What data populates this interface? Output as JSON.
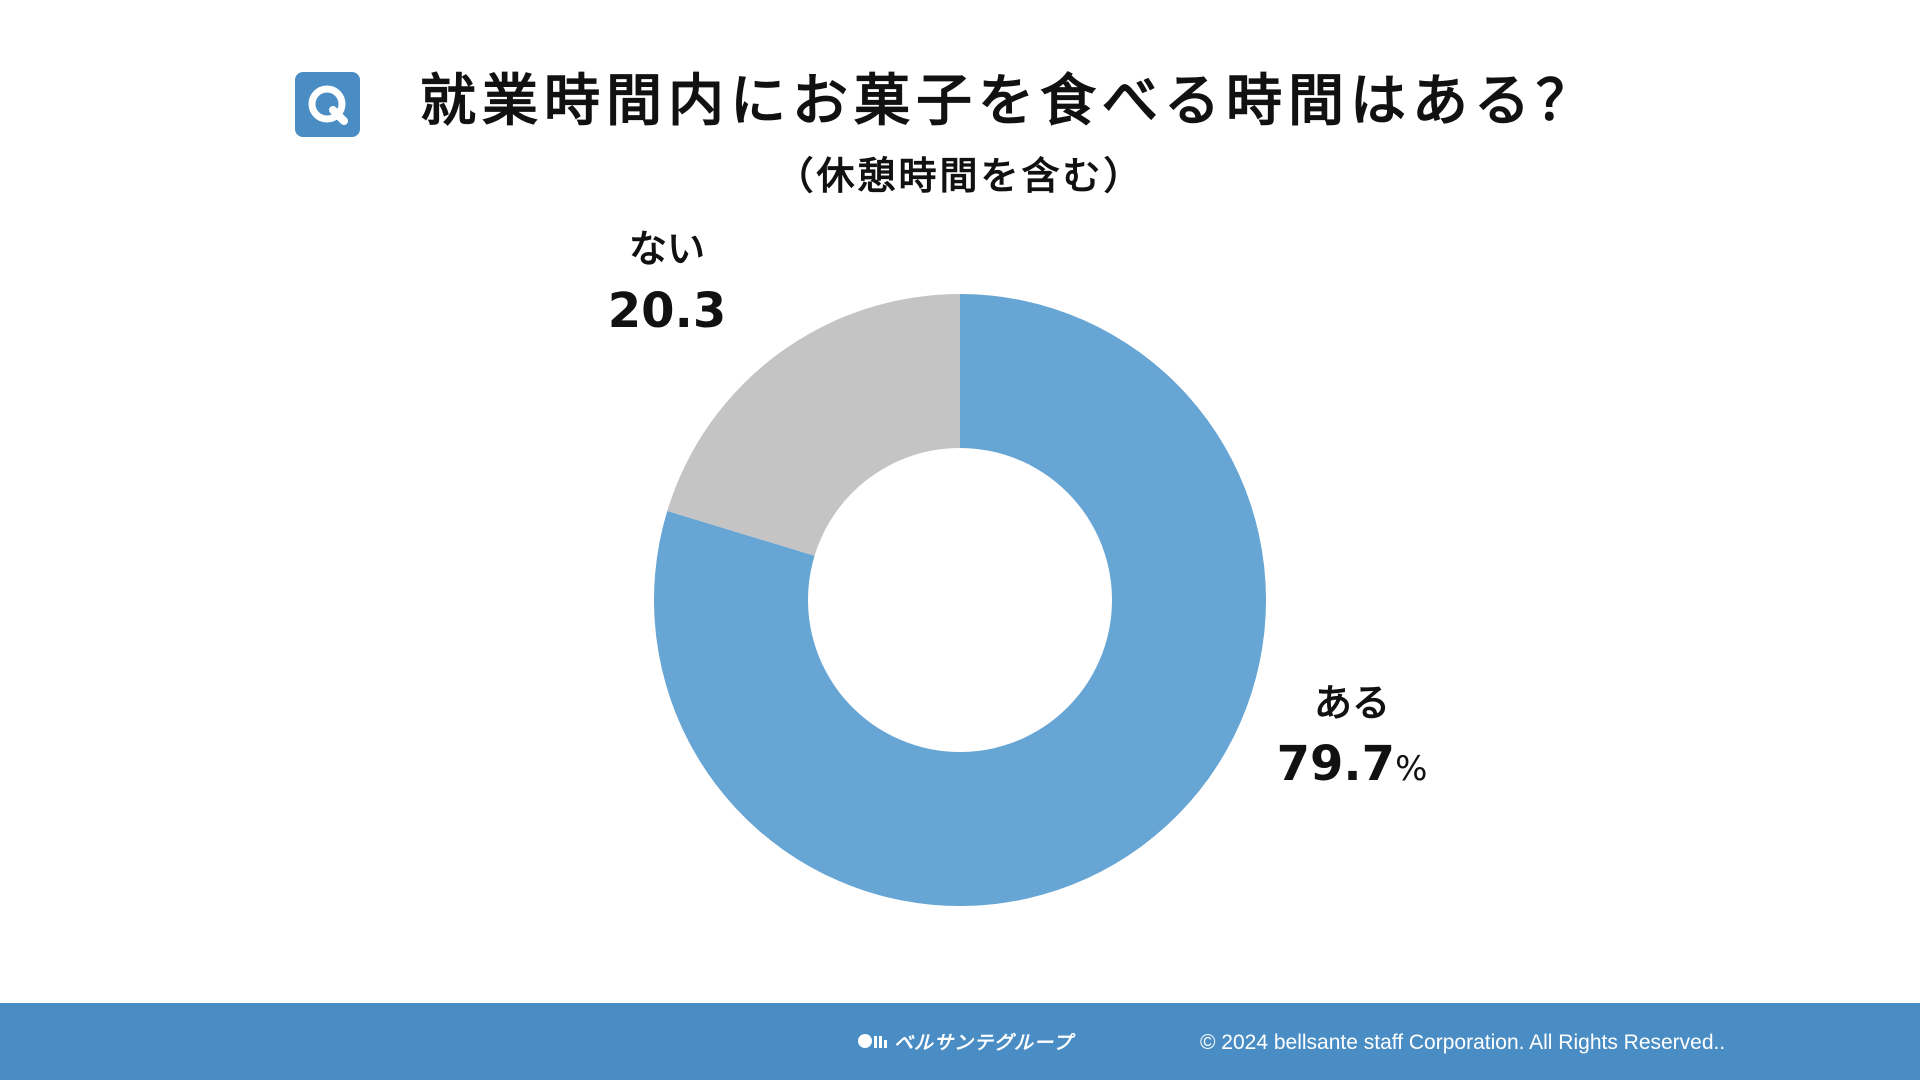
{
  "header": {
    "q_badge": "Q",
    "title": "就業時間内にお菓子を食べる時間はある？",
    "subtitle": "（休憩時間を含む）"
  },
  "chart_data": {
    "type": "pie",
    "donut": true,
    "slices": [
      {
        "label": "ある",
        "value": 79.7,
        "value_text": "79.7",
        "unit": "%",
        "color": "#67a5d4"
      },
      {
        "label": "ない",
        "value": 20.3,
        "value_text": "20.3",
        "unit": "",
        "color": "#c5c4c5"
      }
    ],
    "start_angle": "12 o'clock",
    "direction": "clockwise"
  },
  "footer": {
    "logo_text": "ベルサンテグループ",
    "copyright": "© 2024 bellsante staff Corporation. All Rights Reserved..",
    "background": "#4a8dc4"
  },
  "colors": {
    "accent": "#4a8dc4",
    "text": "#111111"
  }
}
